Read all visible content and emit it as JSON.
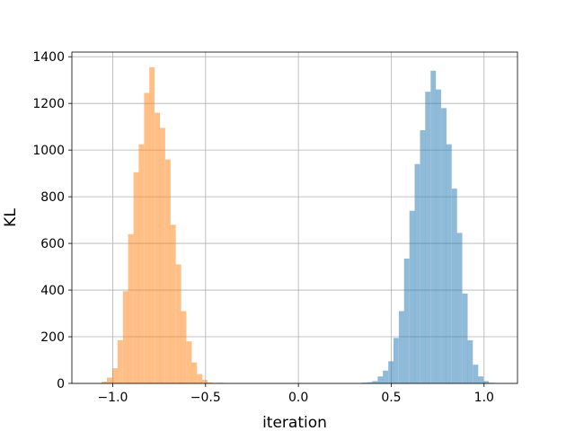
{
  "chart_data": {
    "type": "bar",
    "title": "",
    "xlabel": "iteration",
    "ylabel": "KL",
    "xlim": [
      -1.22,
      1.18
    ],
    "ylim": [
      0,
      1420
    ],
    "xticks": [
      -1.0,
      -0.5,
      0.0,
      0.5,
      1.0
    ],
    "xtick_labels": [
      "−1.0",
      "−0.5",
      "0.0",
      "0.5",
      "1.0"
    ],
    "yticks": [
      0,
      200,
      400,
      600,
      800,
      1000,
      1200,
      1400
    ],
    "ytick_labels": [
      "0",
      "200",
      "400",
      "600",
      "800",
      "1000",
      "1200",
      "1400"
    ],
    "grid": true,
    "series": [
      {
        "color": "#ff7f0e",
        "opacity": 0.5,
        "bin_width": 0.0286,
        "bins": [
          {
            "x": -1.059,
            "y": 8
          },
          {
            "x": -1.031,
            "y": 25
          },
          {
            "x": -1.002,
            "y": 65
          },
          {
            "x": -0.974,
            "y": 185
          },
          {
            "x": -0.945,
            "y": 395
          },
          {
            "x": -0.917,
            "y": 640
          },
          {
            "x": -0.888,
            "y": 905
          },
          {
            "x": -0.86,
            "y": 1025
          },
          {
            "x": -0.831,
            "y": 1245
          },
          {
            "x": -0.803,
            "y": 1355
          },
          {
            "x": -0.774,
            "y": 1160
          },
          {
            "x": -0.746,
            "y": 1095
          },
          {
            "x": -0.717,
            "y": 960
          },
          {
            "x": -0.689,
            "y": 680
          },
          {
            "x": -0.66,
            "y": 510
          },
          {
            "x": -0.632,
            "y": 310
          },
          {
            "x": -0.603,
            "y": 180
          },
          {
            "x": -0.575,
            "y": 90
          },
          {
            "x": -0.546,
            "y": 40
          },
          {
            "x": -0.518,
            "y": 15
          },
          {
            "x": -0.489,
            "y": 4
          },
          {
            "x": -0.461,
            "y": 2
          },
          {
            "x": -0.432,
            "y": 3
          }
        ]
      },
      {
        "color": "#1f77b4",
        "opacity": 0.5,
        "bin_width": 0.0286,
        "bins": [
          {
            "x": 0.341,
            "y": 3
          },
          {
            "x": 0.37,
            "y": 5
          },
          {
            "x": 0.398,
            "y": 10
          },
          {
            "x": 0.427,
            "y": 30
          },
          {
            "x": 0.455,
            "y": 55
          },
          {
            "x": 0.484,
            "y": 95
          },
          {
            "x": 0.512,
            "y": 195
          },
          {
            "x": 0.541,
            "y": 310
          },
          {
            "x": 0.569,
            "y": 535
          },
          {
            "x": 0.598,
            "y": 740
          },
          {
            "x": 0.626,
            "y": 940
          },
          {
            "x": 0.655,
            "y": 1085
          },
          {
            "x": 0.683,
            "y": 1250
          },
          {
            "x": 0.712,
            "y": 1340
          },
          {
            "x": 0.74,
            "y": 1260
          },
          {
            "x": 0.769,
            "y": 1180
          },
          {
            "x": 0.797,
            "y": 1025
          },
          {
            "x": 0.826,
            "y": 835
          },
          {
            "x": 0.854,
            "y": 645
          },
          {
            "x": 0.883,
            "y": 385
          },
          {
            "x": 0.911,
            "y": 185
          },
          {
            "x": 0.94,
            "y": 80
          },
          {
            "x": 0.968,
            "y": 30
          },
          {
            "x": 0.997,
            "y": 10
          },
          {
            "x": 1.025,
            "y": 3
          }
        ]
      }
    ]
  }
}
